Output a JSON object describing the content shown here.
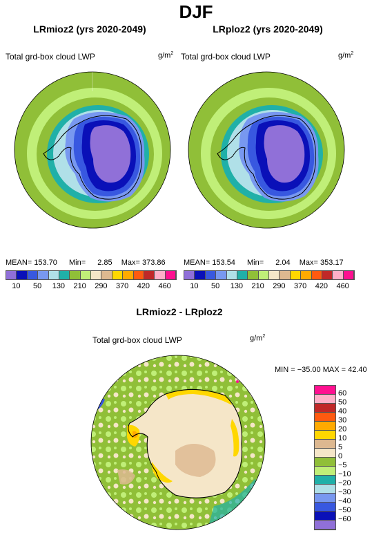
{
  "season": "DJF",
  "variable_label": "Total grd-box cloud LWP",
  "units_base": "g/m",
  "units_exp": "2",
  "colors": {
    "purple": "#9070d8",
    "navy": "#0a10b8",
    "blue": "#3858e0",
    "lightblue": "#7898f0",
    "paleblue": "#b0e0e8",
    "teal": "#20b0a8",
    "green": "#90bf38",
    "lightgreen": "#c0ef78",
    "beige": "#f5e6c8",
    "tan": "#ddb890",
    "yellow": "#ffd700",
    "orange": "#ffaa00",
    "redorange": "#ff5a10",
    "red": "#c02828",
    "pink": "#ffb0c8",
    "magenta": "#ff1090"
  },
  "left_panel": {
    "title": "LRmioz2 (yrs 2020-2049)",
    "mean_label": "MEAN=",
    "mean": "153.70",
    "min_label": "Min=",
    "min": "2.85",
    "max_label": "Max=",
    "max": "373.86"
  },
  "right_panel": {
    "title": "LRploz2 (yrs 2020-2049)",
    "mean_label": "MEAN=",
    "mean": "153.54",
    "min_label": "Min=",
    "min": "2.04",
    "max_label": "Max=",
    "max": "353.17"
  },
  "top_colorbar_labels": [
    "10",
    "50",
    "130",
    "210",
    "290",
    "370",
    "420",
    "460"
  ],
  "diff_panel": {
    "title": "LRmioz2 - LRploz2",
    "minmax_text": "MIN = −35.00 MAX =   42.40"
  },
  "diff_colorbar_labels": [
    "60",
    "50",
    "40",
    "30",
    "20",
    "10",
    "5",
    "0",
    "−5",
    "−10",
    "−20",
    "−30",
    "−40",
    "−50",
    "−60"
  ]
}
